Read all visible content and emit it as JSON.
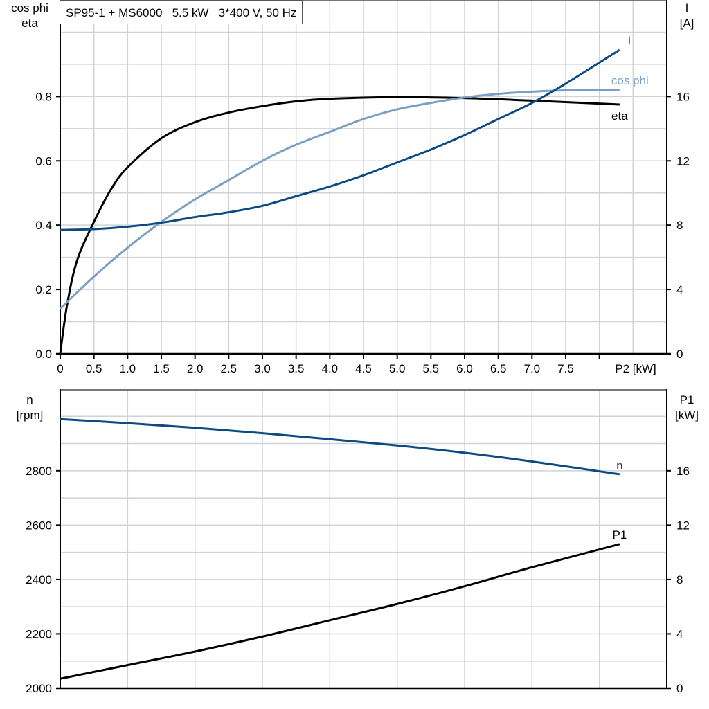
{
  "title": "SP95-1 + MS6000   5.5 kW   3*400 V, 50 Hz",
  "colors": {
    "I": "#0e4a82",
    "n": "#0e4a82",
    "cos_phi": "#7b9fc2",
    "eta": "#000000",
    "P1": "#000000",
    "grid": "#cfd3d8"
  },
  "chart_data": [
    {
      "type": "line",
      "xlabel": "P2 [kW]",
      "xlim": [
        0,
        9
      ],
      "x_ticks": [
        "0",
        "0.5",
        "1.0",
        "1.5",
        "2.0",
        "2.5",
        "3.0",
        "3.5",
        "4.0",
        "4.5",
        "5.0",
        "5.5",
        "6.0",
        "6.5",
        "7.0",
        "7.5"
      ],
      "x_tick_values": [
        0,
        0.5,
        1,
        1.5,
        2,
        2.5,
        3,
        3.5,
        4,
        4.5,
        5,
        5.5,
        6,
        6.5,
        7,
        7.5
      ],
      "ylabel_left": [
        "cos phi",
        "eta"
      ],
      "ylim_left": [
        0,
        1.1
      ],
      "y_ticks_left": [
        "0.0",
        "0.2",
        "0.4",
        "0.6",
        "0.8"
      ],
      "ylabel_right": [
        "I",
        "[A]"
      ],
      "ylim_right": [
        0,
        22
      ],
      "y_ticks_right": [
        "0",
        "4",
        "8",
        "12",
        "16"
      ],
      "grid": true,
      "series": [
        {
          "name": "eta",
          "axis": "left",
          "color_key": "eta",
          "points": [
            [
              0,
              0
            ],
            [
              0.1,
              0.15
            ],
            [
              0.25,
              0.29
            ],
            [
              0.5,
              0.41
            ],
            [
              0.75,
              0.51
            ],
            [
              1,
              0.58
            ],
            [
              1.5,
              0.67
            ],
            [
              2,
              0.72
            ],
            [
              2.5,
              0.75
            ],
            [
              3,
              0.77
            ],
            [
              3.5,
              0.785
            ],
            [
              4,
              0.793
            ],
            [
              5,
              0.798
            ],
            [
              6,
              0.795
            ],
            [
              7,
              0.787
            ],
            [
              8.3,
              0.775
            ]
          ]
        },
        {
          "name": "cos phi",
          "axis": "left",
          "color_key": "cos_phi",
          "points": [
            [
              0,
              0.14
            ],
            [
              0.5,
              0.24
            ],
            [
              1,
              0.33
            ],
            [
              1.5,
              0.41
            ],
            [
              2,
              0.48
            ],
            [
              2.5,
              0.54
            ],
            [
              3,
              0.6
            ],
            [
              3.5,
              0.65
            ],
            [
              4,
              0.69
            ],
            [
              4.5,
              0.73
            ],
            [
              5,
              0.76
            ],
            [
              5.5,
              0.78
            ],
            [
              6,
              0.797
            ],
            [
              6.5,
              0.808
            ],
            [
              7,
              0.815
            ],
            [
              7.5,
              0.819
            ],
            [
              8.3,
              0.82
            ]
          ]
        },
        {
          "name": "I",
          "axis": "right",
          "color_key": "I",
          "points": [
            [
              0,
              7.7
            ],
            [
              0.5,
              7.75
            ],
            [
              1,
              7.9
            ],
            [
              1.5,
              8.15
            ],
            [
              2,
              8.5
            ],
            [
              2.5,
              8.8
            ],
            [
              3,
              9.2
            ],
            [
              3.5,
              9.8
            ],
            [
              4,
              10.4
            ],
            [
              4.5,
              11.1
            ],
            [
              5,
              11.9
            ],
            [
              5.5,
              12.7
            ],
            [
              6,
              13.6
            ],
            [
              6.5,
              14.6
            ],
            [
              7,
              15.6
            ],
            [
              7.5,
              16.8
            ],
            [
              8.3,
              18.9
            ]
          ]
        }
      ]
    },
    {
      "type": "line",
      "xlim": [
        0,
        9
      ],
      "ylabel_left": [
        "n",
        "[rpm]"
      ],
      "ylim_left": [
        2000,
        3100
      ],
      "y_ticks_left": [
        "2000",
        "2200",
        "2400",
        "2600",
        "2800"
      ],
      "ylabel_right": [
        "P1",
        "[kW]"
      ],
      "ylim_right": [
        0,
        22
      ],
      "y_ticks_right": [
        "0",
        "4",
        "8",
        "12",
        "16"
      ],
      "grid": true,
      "series": [
        {
          "name": "n",
          "axis": "left",
          "color_key": "n",
          "points": [
            [
              0,
              2990
            ],
            [
              1,
              2975
            ],
            [
              2,
              2958
            ],
            [
              3,
              2938
            ],
            [
              4,
              2916
            ],
            [
              5,
              2893
            ],
            [
              6,
              2866
            ],
            [
              7,
              2834
            ],
            [
              8.3,
              2787
            ]
          ]
        },
        {
          "name": "P1",
          "axis": "right",
          "color_key": "P1",
          "points": [
            [
              0,
              0.7
            ],
            [
              1,
              1.7
            ],
            [
              2,
              2.7
            ],
            [
              3,
              3.8
            ],
            [
              4,
              5.0
            ],
            [
              5,
              6.2
            ],
            [
              6,
              7.5
            ],
            [
              7,
              8.9
            ],
            [
              8.3,
              10.6
            ]
          ]
        }
      ]
    }
  ]
}
